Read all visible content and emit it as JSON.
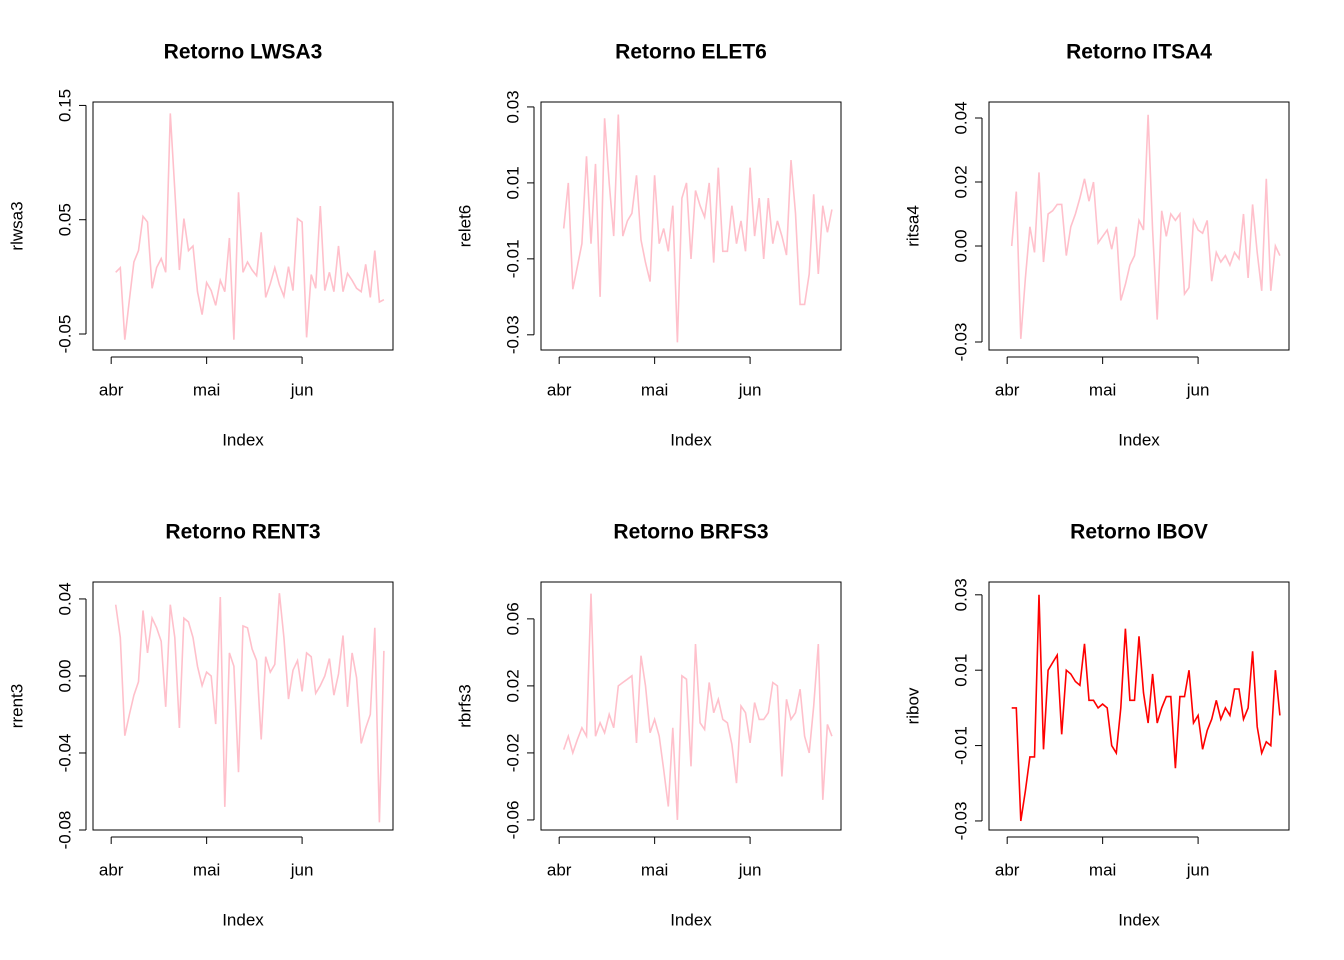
{
  "chart_data": [
    {
      "type": "line",
      "title": "Retorno LWSA3",
      "xlabel": "Index",
      "ylabel": "rlwsa3",
      "color": "#ffc0cb",
      "xlim": [
        -5,
        61
      ],
      "xticks": [
        {
          "value": -1,
          "label": "abr"
        },
        {
          "value": 20,
          "label": "mai"
        },
        {
          "value": 41,
          "label": "jun"
        }
      ],
      "ylim": [
        -0.064,
        0.153
      ],
      "yticks": [
        -0.05,
        0.05,
        0.15
      ],
      "values": [
        0.004,
        0.008,
        -0.055,
        -0.02,
        0.013,
        0.023,
        0.053,
        0.048,
        -0.01,
        0.008,
        0.016,
        0.004,
        0.143,
        0.076,
        0.006,
        0.051,
        0.023,
        0.027,
        -0.013,
        -0.033,
        -0.005,
        -0.012,
        -0.025,
        -0.003,
        -0.013,
        0.034,
        -0.055,
        0.074,
        0.004,
        0.013,
        0.006,
        0.001,
        0.039,
        -0.018,
        -0.006,
        0.008,
        -0.007,
        -0.017,
        0.009,
        -0.012,
        0.051,
        0.048,
        -0.053,
        0.002,
        -0.01,
        0.062,
        -0.012,
        0.004,
        -0.013,
        0.027,
        -0.013,
        0.003,
        -0.003,
        -0.01,
        -0.013,
        0.011,
        -0.018,
        0.023,
        -0.022,
        -0.02
      ]
    },
    {
      "type": "line",
      "title": "Retorno ELET6",
      "xlabel": "Index",
      "ylabel": "relet6",
      "color": "#ffc0cb",
      "xlim": [
        -5,
        61
      ],
      "xticks": [
        {
          "value": -1,
          "label": "abr"
        },
        {
          "value": 20,
          "label": "mai"
        },
        {
          "value": 41,
          "label": "jun"
        }
      ],
      "ylim": [
        -0.034,
        0.0313
      ],
      "yticks": [
        -0.03,
        -0.01,
        0.01,
        0.03
      ],
      "values": [
        -0.002,
        0.01,
        -0.018,
        -0.012,
        -0.006,
        0.017,
        -0.006,
        0.015,
        -0.02,
        0.027,
        0.01,
        -0.004,
        0.028,
        -0.004,
        0.0,
        0.002,
        0.012,
        -0.005,
        -0.011,
        -0.016,
        0.012,
        -0.006,
        -0.002,
        -0.008,
        0.004,
        -0.032,
        0.006,
        0.01,
        -0.01,
        0.008,
        0.004,
        0.001,
        0.01,
        -0.011,
        0.014,
        -0.008,
        -0.008,
        0.004,
        -0.006,
        0.0,
        -0.008,
        0.014,
        -0.004,
        0.006,
        -0.01,
        0.006,
        -0.006,
        0.0,
        -0.004,
        -0.009,
        0.016,
        0.002,
        -0.022,
        -0.022,
        -0.014,
        0.007,
        -0.014,
        0.004,
        -0.003,
        0.003
      ]
    },
    {
      "type": "line",
      "title": "Retorno ITSA4",
      "xlabel": "Index",
      "ylabel": "ritsa4",
      "color": "#ffc0cb",
      "xlim": [
        -5,
        61
      ],
      "xticks": [
        {
          "value": -1,
          "label": "abr"
        },
        {
          "value": 20,
          "label": "mai"
        },
        {
          "value": 41,
          "label": "jun"
        }
      ],
      "ylim": [
        -0.0325,
        0.045
      ],
      "yticks": [
        -0.03,
        {
          "value": 0,
          "label": "0.00"
        },
        0.02,
        0.04
      ],
      "values": [
        0.0,
        0.017,
        -0.029,
        -0.01,
        0.006,
        -0.002,
        0.023,
        -0.005,
        0.01,
        0.011,
        0.013,
        0.013,
        -0.003,
        0.006,
        0.01,
        0.015,
        0.021,
        0.014,
        0.02,
        0.001,
        0.003,
        0.005,
        -0.001,
        0.006,
        -0.017,
        -0.012,
        -0.006,
        -0.003,
        0.008,
        0.005,
        0.041,
        0.005,
        -0.023,
        0.011,
        0.003,
        0.01,
        0.008,
        0.01,
        -0.015,
        -0.013,
        0.008,
        0.005,
        0.004,
        0.008,
        -0.011,
        -0.002,
        -0.005,
        -0.003,
        -0.006,
        -0.002,
        -0.004,
        0.01,
        -0.01,
        0.013,
        -0.002,
        -0.014,
        0.021,
        -0.014,
        0.0,
        -0.003
      ]
    },
    {
      "type": "line",
      "title": "Retorno RENT3",
      "xlabel": "Index",
      "ylabel": "rrent3",
      "color": "#ffc0cb",
      "xlim": [
        -5,
        61
      ],
      "xticks": [
        {
          "value": -1,
          "label": "abr"
        },
        {
          "value": 20,
          "label": "mai"
        },
        {
          "value": 41,
          "label": "jun"
        }
      ],
      "ylim": [
        -0.08,
        0.0488
      ],
      "yticks": [
        -0.08,
        -0.04,
        {
          "value": 0,
          "label": "0.00"
        },
        0.04
      ],
      "values": [
        0.037,
        0.02,
        -0.031,
        -0.02,
        -0.01,
        -0.003,
        0.034,
        0.012,
        0.03,
        0.025,
        0.018,
        -0.016,
        0.037,
        0.02,
        -0.027,
        0.03,
        0.028,
        0.02,
        0.005,
        -0.005,
        0.002,
        0.0,
        -0.025,
        0.041,
        -0.068,
        0.012,
        0.005,
        -0.05,
        0.026,
        0.025,
        0.014,
        0.008,
        -0.033,
        0.01,
        0.002,
        0.006,
        0.043,
        0.02,
        -0.012,
        0.003,
        0.008,
        -0.008,
        0.012,
        0.01,
        -0.009,
        -0.005,
        0.0,
        0.009,
        -0.01,
        0.001,
        0.021,
        -0.016,
        0.012,
        -0.001,
        -0.035,
        -0.027,
        -0.02,
        0.025,
        -0.076,
        0.013
      ]
    },
    {
      "type": "line",
      "title": "Retorno BRFS3",
      "xlabel": "Index",
      "ylabel": "rbrfs3",
      "color": "#ffc0cb",
      "xlim": [
        -5,
        61
      ],
      "xticks": [
        {
          "value": -1,
          "label": "abr"
        },
        {
          "value": 20,
          "label": "mai"
        },
        {
          "value": 41,
          "label": "jun"
        }
      ],
      "ylim": [
        -0.066,
        0.082
      ],
      "yticks": [
        -0.06,
        -0.02,
        0.02,
        0.06
      ],
      "values": [
        -0.018,
        -0.01,
        -0.02,
        -0.012,
        -0.005,
        -0.01,
        0.075,
        -0.01,
        -0.002,
        -0.008,
        0.003,
        -0.005,
        0.02,
        0.022,
        0.024,
        0.026,
        -0.014,
        0.038,
        0.02,
        -0.008,
        0.0,
        -0.01,
        -0.03,
        -0.052,
        -0.005,
        -0.06,
        0.026,
        0.024,
        -0.028,
        0.045,
        -0.002,
        -0.006,
        0.022,
        0.004,
        0.012,
        0.0,
        -0.002,
        -0.015,
        -0.038,
        0.008,
        0.004,
        -0.014,
        0.01,
        0.0,
        0.0,
        0.004,
        0.022,
        0.02,
        -0.034,
        0.012,
        0.0,
        0.004,
        0.018,
        -0.01,
        -0.02,
        0.008,
        0.045,
        -0.048,
        -0.003,
        -0.01
      ]
    },
    {
      "type": "line",
      "title": "Retorno IBOV",
      "xlabel": "Index",
      "ylabel": "ribov",
      "color": "#ff0000",
      "xlim": [
        -5,
        61
      ],
      "xticks": [
        {
          "value": -1,
          "label": "abr"
        },
        {
          "value": 20,
          "label": "mai"
        },
        {
          "value": 41,
          "label": "jun"
        }
      ],
      "ylim": [
        -0.0324,
        0.0334
      ],
      "yticks": [
        -0.03,
        -0.01,
        0.01,
        0.03
      ],
      "values": [
        0.0,
        0.0,
        -0.03,
        -0.022,
        -0.013,
        -0.013,
        0.03,
        -0.011,
        0.01,
        0.012,
        0.014,
        -0.007,
        0.01,
        0.009,
        0.007,
        0.006,
        0.017,
        0.002,
        0.002,
        0.0,
        0.001,
        0.0,
        -0.01,
        -0.012,
        0.0,
        0.021,
        0.002,
        0.002,
        0.019,
        0.004,
        -0.004,
        0.009,
        -0.004,
        0.0,
        0.003,
        0.003,
        -0.016,
        0.003,
        0.003,
        0.01,
        -0.004,
        -0.002,
        -0.011,
        -0.006,
        -0.003,
        0.002,
        -0.003,
        0.0,
        -0.002,
        0.005,
        0.005,
        -0.003,
        0.0,
        0.015,
        -0.005,
        -0.012,
        -0.009,
        -0.01,
        0.01,
        -0.002
      ]
    }
  ]
}
